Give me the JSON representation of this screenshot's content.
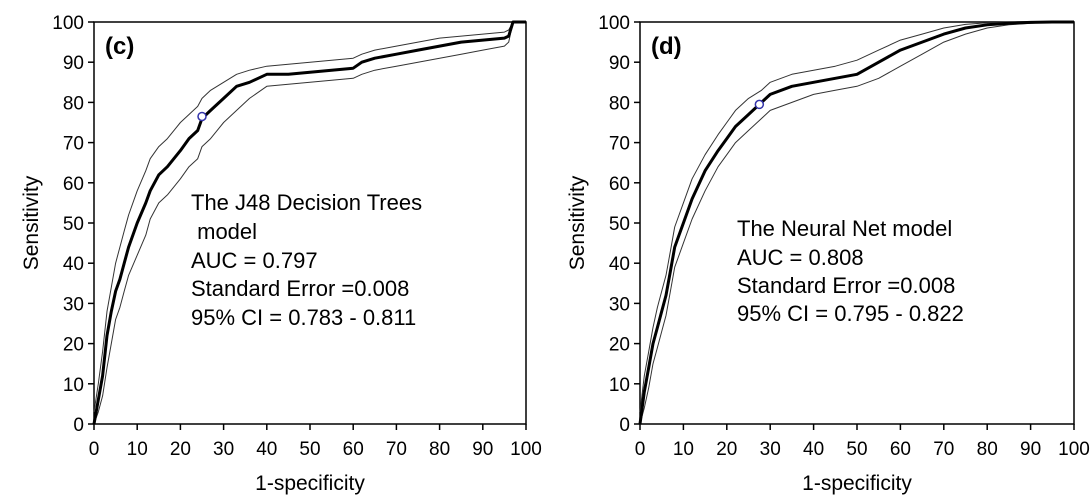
{
  "chart_data": [
    {
      "type": "line",
      "panel_label": "(c)",
      "xlabel": "1-specificity",
      "ylabel": "Sensitivity",
      "xlim": [
        0,
        100
      ],
      "ylim": [
        0,
        100
      ],
      "x_ticks": [
        0,
        10,
        20,
        30,
        40,
        50,
        60,
        70,
        80,
        90,
        100
      ],
      "y_ticks": [
        0,
        10,
        20,
        30,
        40,
        50,
        60,
        70,
        80,
        90,
        100
      ],
      "annotation": [
        "The J48 Decision Trees",
        " model",
        "AUC = 0.797",
        "Standard Error =0.008",
        "95% CI = 0.783 - 0.811"
      ],
      "cutoff_point": {
        "x": 25,
        "y": 76.5
      },
      "series": [
        {
          "role": "roc",
          "x": [
            0,
            1,
            2,
            3,
            4,
            5,
            6,
            7,
            8,
            10,
            12,
            13,
            15,
            17,
            20,
            22,
            24,
            25,
            27,
            30,
            33,
            36,
            40,
            45,
            50,
            55,
            60,
            62,
            65,
            70,
            75,
            80,
            85,
            90,
            95,
            96,
            97,
            98,
            100
          ],
          "y": [
            0,
            6,
            12,
            22,
            28,
            33,
            36,
            40,
            44,
            50,
            55,
            58,
            62,
            64,
            68,
            71,
            73,
            76,
            78,
            81,
            84,
            85,
            87,
            87,
            87.5,
            88,
            88.5,
            90,
            91,
            92,
            93,
            94,
            95,
            95.5,
            96,
            96.5,
            100,
            100,
            100
          ]
        },
        {
          "role": "ci-upper",
          "x": [
            0,
            1,
            2,
            3,
            4,
            5,
            6,
            7,
            8,
            10,
            12,
            13,
            15,
            17,
            20,
            22,
            24,
            25,
            27,
            30,
            33,
            36,
            40,
            45,
            50,
            55,
            60,
            62,
            65,
            70,
            75,
            80,
            85,
            90,
            95,
            96,
            97,
            98,
            100
          ],
          "y": [
            3,
            10,
            18,
            28,
            34,
            40,
            44,
            48,
            52,
            58,
            63,
            66,
            69,
            71,
            75,
            77,
            79,
            81,
            83,
            85,
            87,
            88,
            89,
            89.5,
            90,
            90.5,
            91,
            92,
            93,
            94,
            95,
            96,
            96.5,
            97,
            97.5,
            98,
            100,
            100,
            100
          ]
        },
        {
          "role": "ci-lower",
          "x": [
            0,
            1,
            2,
            3,
            4,
            5,
            6,
            7,
            8,
            10,
            12,
            13,
            15,
            17,
            20,
            22,
            24,
            25,
            27,
            30,
            33,
            36,
            40,
            45,
            50,
            55,
            60,
            62,
            65,
            70,
            75,
            80,
            85,
            90,
            95,
            96,
            97,
            98,
            100
          ],
          "y": [
            0,
            3,
            7,
            14,
            20,
            26,
            29,
            33,
            37,
            42,
            47,
            51,
            55,
            57,
            61,
            64,
            66,
            69,
            71,
            75,
            78,
            81,
            84,
            84.5,
            85,
            85.5,
            86,
            87,
            88,
            89,
            90,
            91,
            92,
            93,
            94,
            95,
            100,
            100,
            100
          ]
        }
      ]
    },
    {
      "type": "line",
      "panel_label": "(d)",
      "xlabel": "1-specificity",
      "ylabel": "Sensitivity",
      "xlim": [
        0,
        100
      ],
      "ylim": [
        0,
        100
      ],
      "x_ticks": [
        0,
        10,
        20,
        30,
        40,
        50,
        60,
        70,
        80,
        90,
        100
      ],
      "y_ticks": [
        0,
        10,
        20,
        30,
        40,
        50,
        60,
        70,
        80,
        90,
        100
      ],
      "annotation": [
        "The Neural Net model",
        "AUC = 0.808",
        "Standard Error =0.008",
        "95% CI = 0.795 - 0.822"
      ],
      "cutoff_point": {
        "x": 27.5,
        "y": 79.5
      },
      "series": [
        {
          "role": "roc",
          "x": [
            0,
            1,
            2,
            3,
            4,
            5,
            6,
            7,
            8,
            10,
            12,
            15,
            18,
            20,
            22,
            25,
            28,
            30,
            35,
            40,
            45,
            50,
            55,
            60,
            65,
            70,
            75,
            80,
            85,
            90,
            95,
            100
          ],
          "y": [
            0,
            8,
            14,
            20,
            24,
            28,
            32,
            38,
            44,
            50,
            56,
            63,
            68,
            71,
            74,
            77,
            80,
            82,
            84,
            85,
            86,
            87,
            90,
            93,
            95,
            97,
            98.5,
            99.3,
            99.7,
            99.9,
            100,
            100
          ]
        },
        {
          "role": "ci-upper",
          "x": [
            0,
            1,
            2,
            3,
            4,
            5,
            6,
            7,
            8,
            10,
            12,
            15,
            18,
            20,
            22,
            25,
            28,
            30,
            35,
            40,
            45,
            50,
            55,
            60,
            65,
            70,
            75,
            80,
            85,
            90,
            95,
            100
          ],
          "y": [
            3,
            12,
            18,
            24,
            29,
            33,
            37,
            43,
            49,
            55,
            61,
            67,
            72,
            75,
            78,
            81,
            83,
            85,
            87,
            88,
            89,
            90.5,
            93,
            95.5,
            97,
            98.5,
            99.4,
            99.8,
            100,
            100,
            100,
            100
          ]
        },
        {
          "role": "ci-lower",
          "x": [
            0,
            1,
            2,
            3,
            4,
            5,
            6,
            7,
            8,
            10,
            12,
            15,
            18,
            20,
            22,
            25,
            28,
            30,
            35,
            40,
            45,
            50,
            55,
            60,
            65,
            70,
            75,
            80,
            85,
            90,
            95,
            100
          ],
          "y": [
            0,
            4,
            9,
            15,
            19,
            23,
            27,
            33,
            39,
            45,
            51,
            58,
            64,
            67,
            70,
            73,
            76,
            78,
            80,
            82,
            83,
            84,
            86,
            89,
            92,
            95,
            97,
            98.5,
            99.3,
            99.7,
            100,
            100
          ]
        }
      ]
    }
  ]
}
